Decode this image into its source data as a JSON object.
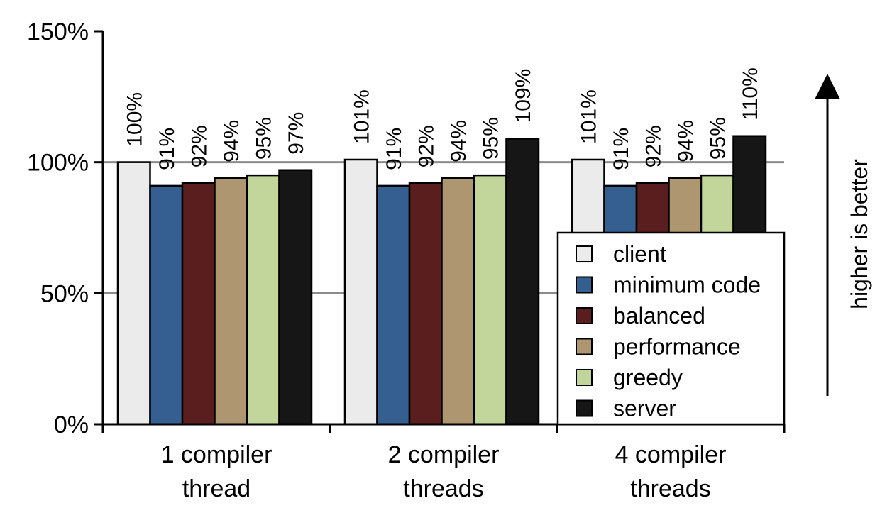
{
  "chart_data": {
    "type": "bar",
    "title": "",
    "xlabel": "",
    "ylabel": "",
    "ylim": [
      0,
      150
    ],
    "yticks": [
      "0%",
      "50%",
      "100%",
      "150%"
    ],
    "grid": true,
    "legend_position": "bottom-right",
    "categories": [
      [
        "1 compiler",
        "thread"
      ],
      [
        "2 compiler",
        "threads"
      ],
      [
        "4 compiler",
        "threads"
      ]
    ],
    "series": [
      {
        "name": "client",
        "color": "#ebebeb",
        "values": [
          100,
          101,
          101
        ],
        "labels": [
          "100%",
          "101%",
          "101%"
        ]
      },
      {
        "name": "minimum code",
        "color": "#365f91",
        "values": [
          91,
          91,
          91
        ],
        "labels": [
          "91%",
          "91%",
          "91%"
        ]
      },
      {
        "name": "balanced",
        "color": "#5a1e1e",
        "values": [
          92,
          92,
          92
        ],
        "labels": [
          "92%",
          "92%",
          "92%"
        ]
      },
      {
        "name": "performance",
        "color": "#ad9670",
        "values": [
          94,
          94,
          94
        ],
        "labels": [
          "94%",
          "94%",
          "94%"
        ]
      },
      {
        "name": "greedy",
        "color": "#c2d69b",
        "values": [
          95,
          95,
          95
        ],
        "labels": [
          "95%",
          "95%",
          "95%"
        ]
      },
      {
        "name": "server",
        "color": "#161616",
        "values": [
          97,
          109,
          110
        ],
        "labels": [
          "97%",
          "109%",
          "110%"
        ]
      }
    ],
    "annotation": "higher is better"
  }
}
